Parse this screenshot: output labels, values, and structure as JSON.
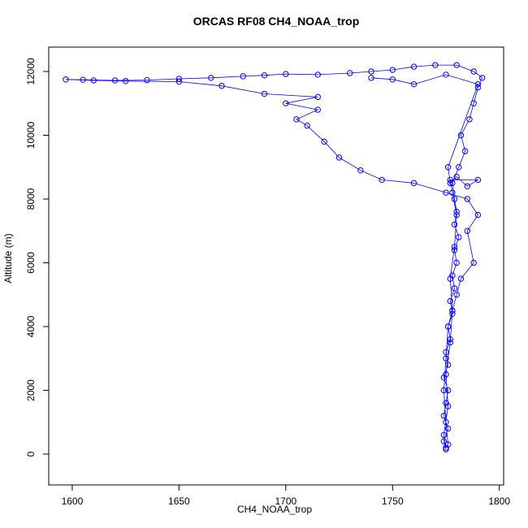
{
  "chart_data": {
    "type": "line",
    "title": "ORCAS RF08 CH4_NOAA_trop",
    "x_label": "CH4_NOAA_trop",
    "y_label": "Altitude (m)",
    "color": "blue",
    "markers": true,
    "xlim": [
      1589,
      1802
    ],
    "ylim": [
      -968,
      12764
    ],
    "xticks": [
      1600,
      1650,
      1700,
      1750,
      1800
    ],
    "yticks": [
      0,
      2000,
      4000,
      6000,
      8000,
      10000,
      12000
    ],
    "x": [
      1775,
      1774,
      1776,
      1774,
      1775,
      1776,
      1774,
      1776,
      1775,
      1777,
      1776,
      1778,
      1777,
      1779,
      1778,
      1780,
      1779,
      1781,
      1779,
      1780,
      1779,
      1778,
      1781,
      1784,
      1782,
      1786,
      1788,
      1790,
      1792,
      1788,
      1780,
      1770,
      1760,
      1750,
      1740,
      1730,
      1715,
      1700,
      1690,
      1680,
      1665,
      1650,
      1635,
      1620,
      1605,
      1597,
      1610,
      1625,
      1650,
      1670,
      1690,
      1715,
      1700,
      1715,
      1705,
      1710,
      1718,
      1725,
      1735,
      1745,
      1760,
      1775,
      1785,
      1790,
      1785,
      1788,
      1782,
      1780,
      1778,
      1776,
      1775,
      1774,
      1775,
      1776,
      1775,
      1774,
      1776,
      1775,
      1777,
      1778,
      1777,
      1779,
      1780,
      1778,
      1777,
      1790,
      1785,
      1780,
      1777,
      1776,
      1790,
      1775,
      1760,
      1750,
      1740
    ],
    "y": [
      150,
      400,
      800,
      1200,
      1600,
      2000,
      2400,
      2800,
      3200,
      3600,
      4000,
      4400,
      4800,
      5200,
      5600,
      6000,
      6400,
      6800,
      7200,
      7600,
      8000,
      8500,
      9000,
      9500,
      10000,
      10500,
      11000,
      11500,
      11800,
      12000,
      12200,
      12200,
      12150,
      12050,
      12000,
      11950,
      11900,
      11920,
      11880,
      11850,
      11800,
      11770,
      11730,
      11720,
      11740,
      11750,
      11720,
      11700,
      11680,
      11550,
      11300,
      11200,
      11000,
      10800,
      10500,
      10300,
      9800,
      9300,
      8900,
      8600,
      8500,
      8200,
      8000,
      7500,
      7000,
      6000,
      5500,
      5000,
      4500,
      4000,
      3000,
      2000,
      1000,
      300,
      200,
      600,
      1500,
      2500,
      3500,
      4500,
      5500,
      6500,
      7500,
      8200,
      8600,
      8600,
      8400,
      8700,
      8500,
      9000,
      11600,
      11900,
      11600,
      11750,
      11800
    ]
  }
}
